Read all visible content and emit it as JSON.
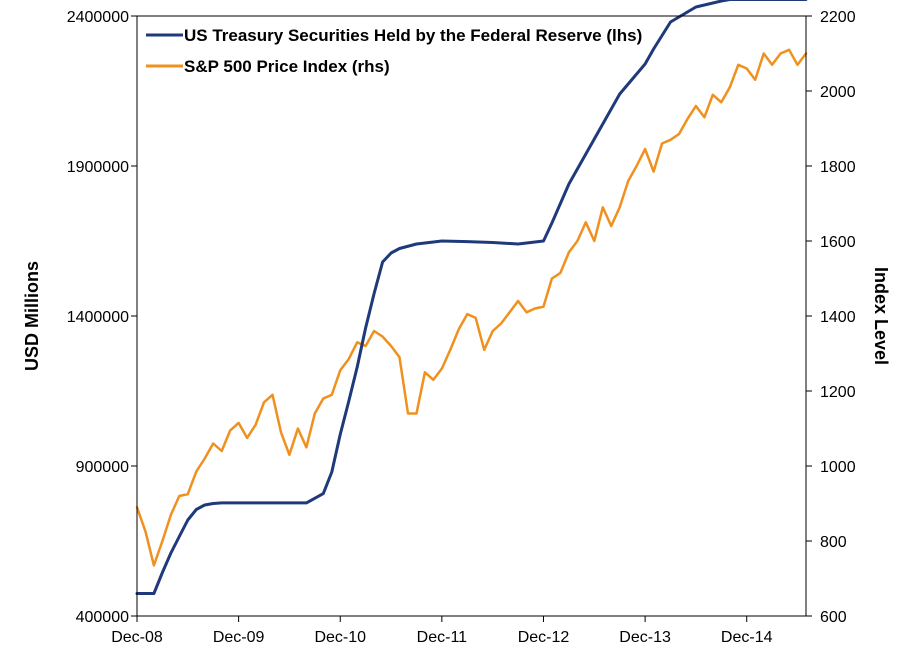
{
  "chart_data": {
    "type": "line",
    "colors": {
      "treasury": "#1f3a7a",
      "sp500": "#f0901e"
    },
    "x_ticks": [
      "Dec-08",
      "Dec-09",
      "Dec-10",
      "Dec-11",
      "Dec-12",
      "Dec-13",
      "Dec-14"
    ],
    "x_range": [
      "2008-12",
      "2015-07"
    ],
    "left_axis": {
      "label": "USD Millions",
      "ylim": [
        400000,
        2400000
      ],
      "ticks": [
        "400000",
        "900000",
        "1400000",
        "1900000",
        "2400000"
      ]
    },
    "right_axis": {
      "label": "Index Level",
      "ylim": [
        600,
        2200
      ],
      "ticks": [
        "600",
        "800",
        "1000",
        "1200",
        "1400",
        "1600",
        "1800",
        "2000",
        "2200"
      ]
    },
    "legend": {
      "position": "top-left"
    },
    "series": [
      {
        "name": "US Treasury Securities Held by the Federal Reserve (lhs)",
        "axis": "left",
        "x": [
          "2008-12",
          "2009-02",
          "2009-03",
          "2009-04",
          "2009-05",
          "2009-06",
          "2009-07",
          "2009-08",
          "2009-09",
          "2009-10",
          "2009-12",
          "2010-03",
          "2010-06",
          "2010-08",
          "2010-10",
          "2010-11",
          "2010-12",
          "2011-01",
          "2011-02",
          "2011-03",
          "2011-04",
          "2011-05",
          "2011-06",
          "2011-07",
          "2011-09",
          "2011-12",
          "2012-03",
          "2012-06",
          "2012-09",
          "2012-12",
          "2013-01",
          "2013-03",
          "2013-06",
          "2013-09",
          "2013-12",
          "2014-01",
          "2014-03",
          "2014-06",
          "2014-09",
          "2014-10",
          "2014-12",
          "2015-03",
          "2015-07"
        ],
        "y": [
          475000,
          475000,
          545000,
          610000,
          665000,
          720000,
          755000,
          770000,
          775000,
          777000,
          777000,
          777000,
          777000,
          777000,
          808000,
          880000,
          1005000,
          1115000,
          1230000,
          1360000,
          1475000,
          1580000,
          1610000,
          1625000,
          1640000,
          1650000,
          1648000,
          1645000,
          1640000,
          1650000,
          1710000,
          1840000,
          1990000,
          2140000,
          2240000,
          2290000,
          2380000,
          2430000,
          2450000,
          2455000,
          2455000,
          2455000,
          2455000
        ]
      },
      {
        "name": "S&P 500 Price Index (rhs)",
        "axis": "right",
        "x": [
          "2008-12",
          "2009-01",
          "2009-02",
          "2009-03",
          "2009-04",
          "2009-05",
          "2009-06",
          "2009-07",
          "2009-08",
          "2009-09",
          "2009-10",
          "2009-11",
          "2009-12",
          "2010-01",
          "2010-02",
          "2010-03",
          "2010-04",
          "2010-05",
          "2010-06",
          "2010-07",
          "2010-08",
          "2010-09",
          "2010-10",
          "2010-11",
          "2010-12",
          "2011-01",
          "2011-02",
          "2011-03",
          "2011-04",
          "2011-05",
          "2011-06",
          "2011-07",
          "2011-08",
          "2011-09",
          "2011-10",
          "2011-11",
          "2011-12",
          "2012-01",
          "2012-02",
          "2012-03",
          "2012-04",
          "2012-05",
          "2012-06",
          "2012-07",
          "2012-08",
          "2012-09",
          "2012-10",
          "2012-11",
          "2012-12",
          "2013-01",
          "2013-02",
          "2013-03",
          "2013-04",
          "2013-05",
          "2013-06",
          "2013-07",
          "2013-08",
          "2013-09",
          "2013-10",
          "2013-11",
          "2013-12",
          "2014-01",
          "2014-02",
          "2014-03",
          "2014-04",
          "2014-05",
          "2014-06",
          "2014-07",
          "2014-08",
          "2014-09",
          "2014-10",
          "2014-11",
          "2014-12",
          "2015-01",
          "2015-02",
          "2015-03",
          "2015-04",
          "2015-05",
          "2015-06",
          "2015-07"
        ],
        "y": [
          890,
          825,
          735,
          800,
          870,
          920,
          925,
          985,
          1020,
          1060,
          1040,
          1095,
          1115,
          1075,
          1110,
          1170,
          1190,
          1090,
          1030,
          1100,
          1050,
          1140,
          1180,
          1190,
          1255,
          1285,
          1330,
          1320,
          1360,
          1345,
          1320,
          1290,
          1140,
          1140,
          1250,
          1230,
          1260,
          1310,
          1365,
          1405,
          1395,
          1310,
          1360,
          1380,
          1410,
          1440,
          1410,
          1420,
          1425,
          1500,
          1515,
          1570,
          1600,
          1650,
          1600,
          1690,
          1640,
          1690,
          1760,
          1800,
          1845,
          1785,
          1860,
          1870,
          1885,
          1925,
          1960,
          1930,
          1990,
          1970,
          2010,
          2070,
          2060,
          2030,
          2100,
          2070,
          2100,
          2110,
          2070,
          2100
        ]
      }
    ]
  }
}
